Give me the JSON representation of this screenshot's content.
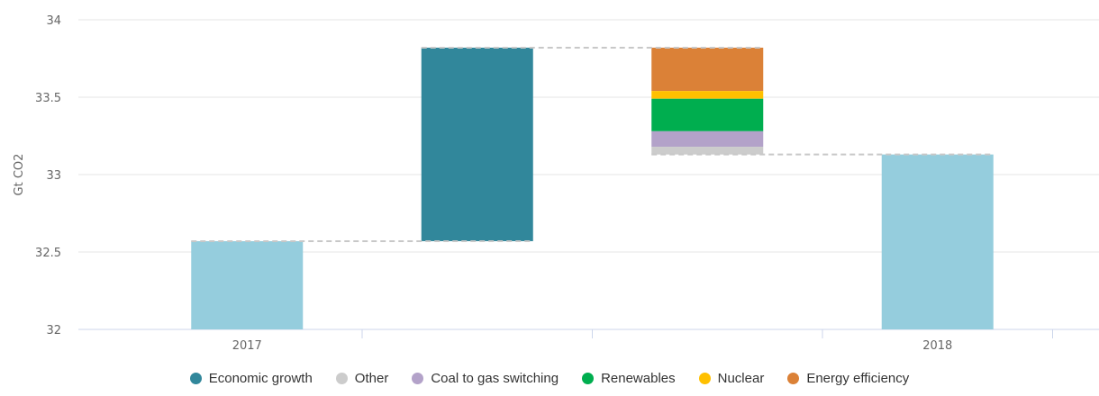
{
  "chart_data": {
    "type": "waterfall",
    "ylabel": "Gt CO2",
    "ylim": [
      32,
      34
    ],
    "yticks": [
      "32",
      "32.5",
      "33",
      "33.5",
      "34"
    ],
    "categories": [
      "2017",
      "",
      "",
      "2018"
    ],
    "grid": true,
    "legend_placement": "bottom",
    "totals": [
      {
        "category": "2017",
        "value": 32.57,
        "color": "#95cddd"
      },
      {
        "category": "2018",
        "value": 33.13,
        "color": "#95cddd"
      }
    ],
    "series": [
      {
        "name": "Economic growth",
        "color": "#31879b",
        "category_index": 1,
        "value": 1.25
      },
      {
        "name": "Other",
        "color": "#cccccc",
        "category_index": 2,
        "value": -0.05
      },
      {
        "name": "Coal to gas switching",
        "color": "#b3a2c9",
        "category_index": 2,
        "value": -0.1
      },
      {
        "name": "Renewables",
        "color": "#00ae4f",
        "category_index": 2,
        "value": -0.21
      },
      {
        "name": "Nuclear",
        "color": "#ffc000",
        "category_index": 2,
        "value": -0.05
      },
      {
        "name": "Energy efficiency",
        "color": "#db8137",
        "category_index": 2,
        "value": -0.28
      }
    ]
  }
}
